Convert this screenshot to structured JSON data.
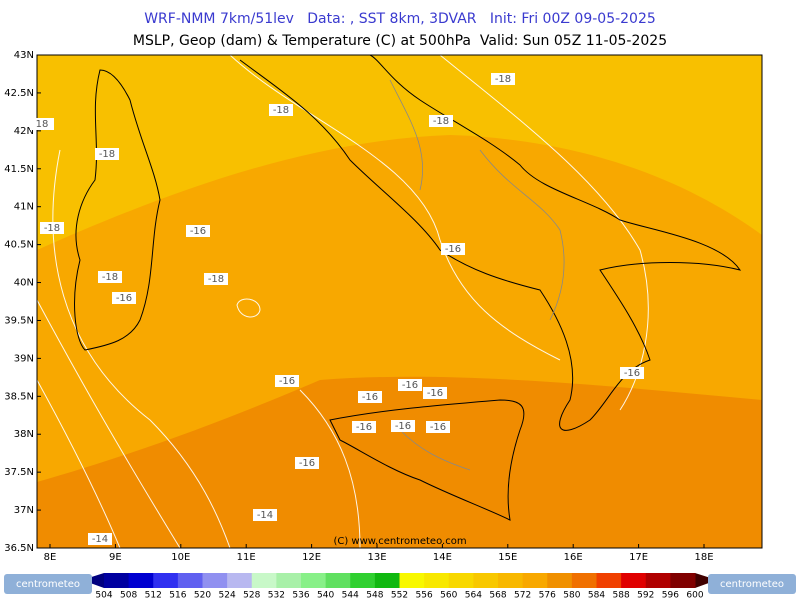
{
  "header": {
    "line1": "WRF-NMM 7km/51lev   Data: , SST 8km, 3DVAR   Init: Fri 00Z 09-05-2025",
    "line2": "MSLP, Geop (dam) & Temperature (C) at 500hPa  Valid: Sun 05Z 11-05-2025"
  },
  "map": {
    "lat_labels": [
      "43N",
      "42.5N",
      "42N",
      "41.5N",
      "41N",
      "40.5N",
      "40N",
      "39.5N",
      "39N",
      "38.5N",
      "38N",
      "37.5N",
      "37N",
      "36.5N"
    ],
    "lon_labels": [
      "8E",
      "9E",
      "10E",
      "11E",
      "12E",
      "13E",
      "14E",
      "15E",
      "16E",
      "17E",
      "18E"
    ],
    "contour_labels": [
      "-18",
      "-18",
      "-18",
      "-18",
      "-18",
      "-16",
      "-16",
      "-18",
      "-18",
      "-16",
      "-16",
      "-16",
      "-16",
      "-16",
      "-16",
      "-16",
      "-16",
      "-16",
      "-16",
      "-14",
      "-14",
      "18"
    ],
    "copyright": "(C) www.centrometeo.com"
  },
  "colorbar": {
    "labels": [
      "504",
      "508",
      "512",
      "516",
      "520",
      "524",
      "528",
      "532",
      "536",
      "540",
      "544",
      "548",
      "552",
      "556",
      "560",
      "564",
      "568",
      "572",
      "576",
      "580",
      "584",
      "588",
      "592",
      "596",
      "600"
    ]
  },
  "logos": [
    "centrometeo",
    "centrometeo"
  ]
}
